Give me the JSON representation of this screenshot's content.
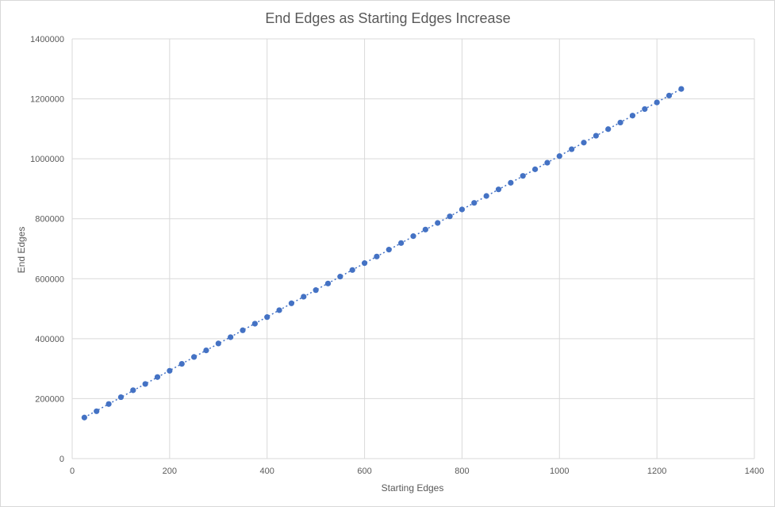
{
  "chart_data": {
    "type": "scatter",
    "title": "End Edges as Starting Edges Increase",
    "xlabel": "Starting Edges",
    "ylabel": "End Edges",
    "xlim": [
      0,
      1400
    ],
    "ylim": [
      0,
      1400000
    ],
    "x_ticks": [
      0,
      200,
      400,
      600,
      800,
      1000,
      1200,
      1400
    ],
    "y_ticks": [
      0,
      200000,
      400000,
      600000,
      800000,
      1000000,
      1200000,
      1400000
    ],
    "grid": true,
    "legend": "none",
    "trendline": "linear (dotted)",
    "series": [
      {
        "color": "#4472c4",
        "x": [
          25,
          50,
          75,
          100,
          125,
          150,
          175,
          200,
          225,
          250,
          275,
          300,
          325,
          350,
          375,
          400,
          425,
          450,
          475,
          500,
          525,
          550,
          575,
          600,
          625,
          650,
          675,
          700,
          725,
          750,
          775,
          800,
          825,
          850,
          875,
          900,
          925,
          950,
          975,
          1000,
          1025,
          1050,
          1075,
          1100,
          1125,
          1150,
          1175,
          1200,
          1225,
          1250
        ],
        "y": [
          137000,
          158000,
          182000,
          205000,
          228000,
          249000,
          272000,
          293000,
          316000,
          339000,
          361000,
          384000,
          405000,
          428000,
          450000,
          472000,
          495000,
          518000,
          540000,
          562000,
          584000,
          607000,
          629000,
          652000,
          674000,
          697000,
          719000,
          742000,
          764000,
          786000,
          808000,
          831000,
          853000,
          876000,
          898000,
          920000,
          943000,
          965000,
          987000,
          1009000,
          1032000,
          1054000,
          1077000,
          1099000,
          1121000,
          1144000,
          1166000,
          1188000,
          1211000,
          1233000
        ]
      }
    ]
  }
}
